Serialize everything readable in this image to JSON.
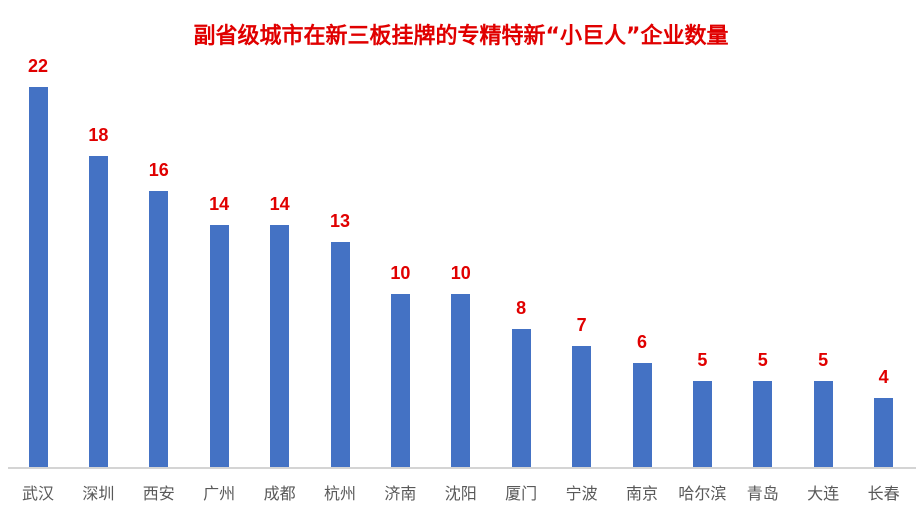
{
  "chart_data": {
    "type": "bar",
    "title": "副省级城市在新三板挂牌的专精特新“小巨人”企业数量",
    "categories": [
      "武汉",
      "深圳",
      "西安",
      "广州",
      "成都",
      "杭州",
      "济南",
      "沈阳",
      "厦门",
      "宁波",
      "南京",
      "哈尔滨",
      "青岛",
      "大连",
      "长春"
    ],
    "values": [
      22,
      18,
      16,
      14,
      14,
      13,
      10,
      10,
      8,
      7,
      6,
      5,
      5,
      5,
      4
    ],
    "xlabel": "",
    "ylabel": "",
    "ylim": [
      0,
      22
    ],
    "grid": false,
    "legend": "none",
    "data_labels": true,
    "colors": {
      "bar": "#4472c4",
      "label": "#e00000",
      "title": "#e00000"
    }
  }
}
